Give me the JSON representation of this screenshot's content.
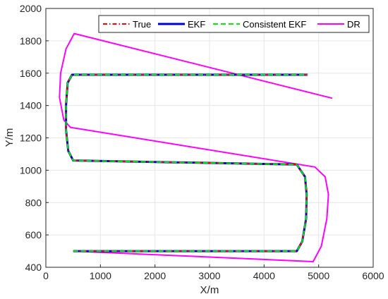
{
  "chart_data": {
    "type": "line",
    "title": "",
    "xlabel": "X/m",
    "ylabel": "Y/m",
    "xlim": [
      0,
      6000
    ],
    "ylim": [
      400,
      2000
    ],
    "xticks": [
      0,
      1000,
      2000,
      3000,
      4000,
      5000,
      6000
    ],
    "yticks": [
      400,
      600,
      800,
      1000,
      1200,
      1400,
      1600,
      1800,
      2000
    ],
    "grid": true,
    "legend": {
      "position": "top-right",
      "orientation": "horizontal"
    },
    "series": [
      {
        "name": "True",
        "color": "#ff0000",
        "dash": "dash-dot",
        "points": [
          [
            500,
            500
          ],
          [
            4600,
            500
          ],
          [
            4700,
            560
          ],
          [
            4770,
            700
          ],
          [
            4780,
            850
          ],
          [
            4750,
            960
          ],
          [
            4600,
            1035
          ],
          [
            500,
            1060
          ],
          [
            410,
            1120
          ],
          [
            370,
            1250
          ],
          [
            370,
            1400
          ],
          [
            400,
            1540
          ],
          [
            480,
            1590
          ],
          [
            4800,
            1590
          ]
        ]
      },
      {
        "name": "EKF",
        "color": "#0000cc",
        "dash": "solid",
        "points": [
          [
            500,
            500
          ],
          [
            4600,
            500
          ],
          [
            4700,
            560
          ],
          [
            4770,
            700
          ],
          [
            4780,
            850
          ],
          [
            4750,
            960
          ],
          [
            4600,
            1035
          ],
          [
            500,
            1060
          ],
          [
            410,
            1120
          ],
          [
            370,
            1250
          ],
          [
            370,
            1400
          ],
          [
            400,
            1540
          ],
          [
            480,
            1590
          ],
          [
            4800,
            1590
          ]
        ]
      },
      {
        "name": "Consistent EKF",
        "color": "#00ee00",
        "dash": "dashed",
        "points": [
          [
            500,
            500
          ],
          [
            4600,
            500
          ],
          [
            4700,
            560
          ],
          [
            4770,
            700
          ],
          [
            4780,
            850
          ],
          [
            4750,
            960
          ],
          [
            4600,
            1035
          ],
          [
            500,
            1060
          ],
          [
            410,
            1120
          ],
          [
            370,
            1250
          ],
          [
            370,
            1400
          ],
          [
            400,
            1540
          ],
          [
            480,
            1590
          ],
          [
            4800,
            1590
          ]
        ]
      },
      {
        "name": "DR",
        "color": "#ff00ff",
        "dash": "solid",
        "points": [
          [
            500,
            500
          ],
          [
            4900,
            435
          ],
          [
            5050,
            530
          ],
          [
            5150,
            700
          ],
          [
            5180,
            850
          ],
          [
            5120,
            960
          ],
          [
            4930,
            1020
          ],
          [
            450,
            1265
          ],
          [
            330,
            1310
          ],
          [
            250,
            1450
          ],
          [
            270,
            1600
          ],
          [
            370,
            1750
          ],
          [
            520,
            1845
          ],
          [
            5250,
            1445
          ]
        ]
      }
    ]
  }
}
